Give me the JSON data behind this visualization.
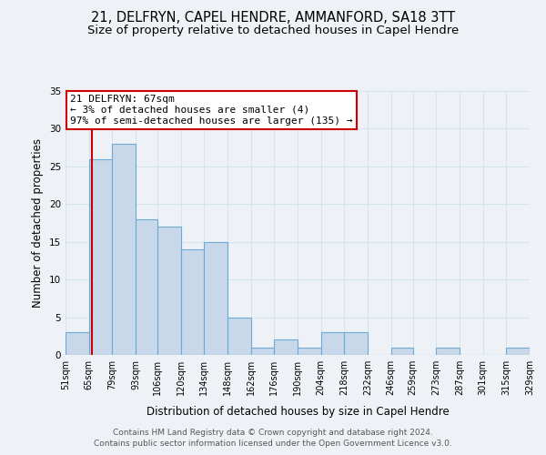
{
  "title": "21, DELFRYN, CAPEL HENDRE, AMMANFORD, SA18 3TT",
  "subtitle": "Size of property relative to detached houses in Capel Hendre",
  "xlabel": "Distribution of detached houses by size in Capel Hendre",
  "ylabel": "Number of detached properties",
  "bar_edges": [
    51,
    65,
    79,
    93,
    106,
    120,
    134,
    148,
    162,
    176,
    190,
    204,
    218,
    232,
    246,
    259,
    273,
    287,
    301,
    315,
    329
  ],
  "bar_heights": [
    3,
    26,
    28,
    18,
    17,
    14,
    15,
    5,
    1,
    2,
    1,
    3,
    3,
    0,
    1,
    0,
    1,
    0,
    0,
    1
  ],
  "bar_color": "#c8d8ea",
  "bar_edgecolor": "#6aaad4",
  "grid_color": "#d5e5f0",
  "vline_x": 67,
  "vline_color": "#cc0000",
  "ylim": [
    0,
    35
  ],
  "yticks": [
    0,
    5,
    10,
    15,
    20,
    25,
    30,
    35
  ],
  "annotation_text": "21 DELFRYN: 67sqm\n← 3% of detached houses are smaller (4)\n97% of semi-detached houses are larger (135) →",
  "annotation_box_edgecolor": "#cc0000",
  "annotation_box_facecolor": "#ffffff",
  "footer_line1": "Contains HM Land Registry data © Crown copyright and database right 2024.",
  "footer_line2": "Contains public sector information licensed under the Open Government Licence v3.0.",
  "background_color": "#eef2f7",
  "title_fontsize": 10.5,
  "subtitle_fontsize": 9.5,
  "tick_label_fontsize": 7,
  "ylabel_fontsize": 8.5,
  "xlabel_fontsize": 8.5,
  "annotation_fontsize": 8,
  "footer_fontsize": 6.5
}
